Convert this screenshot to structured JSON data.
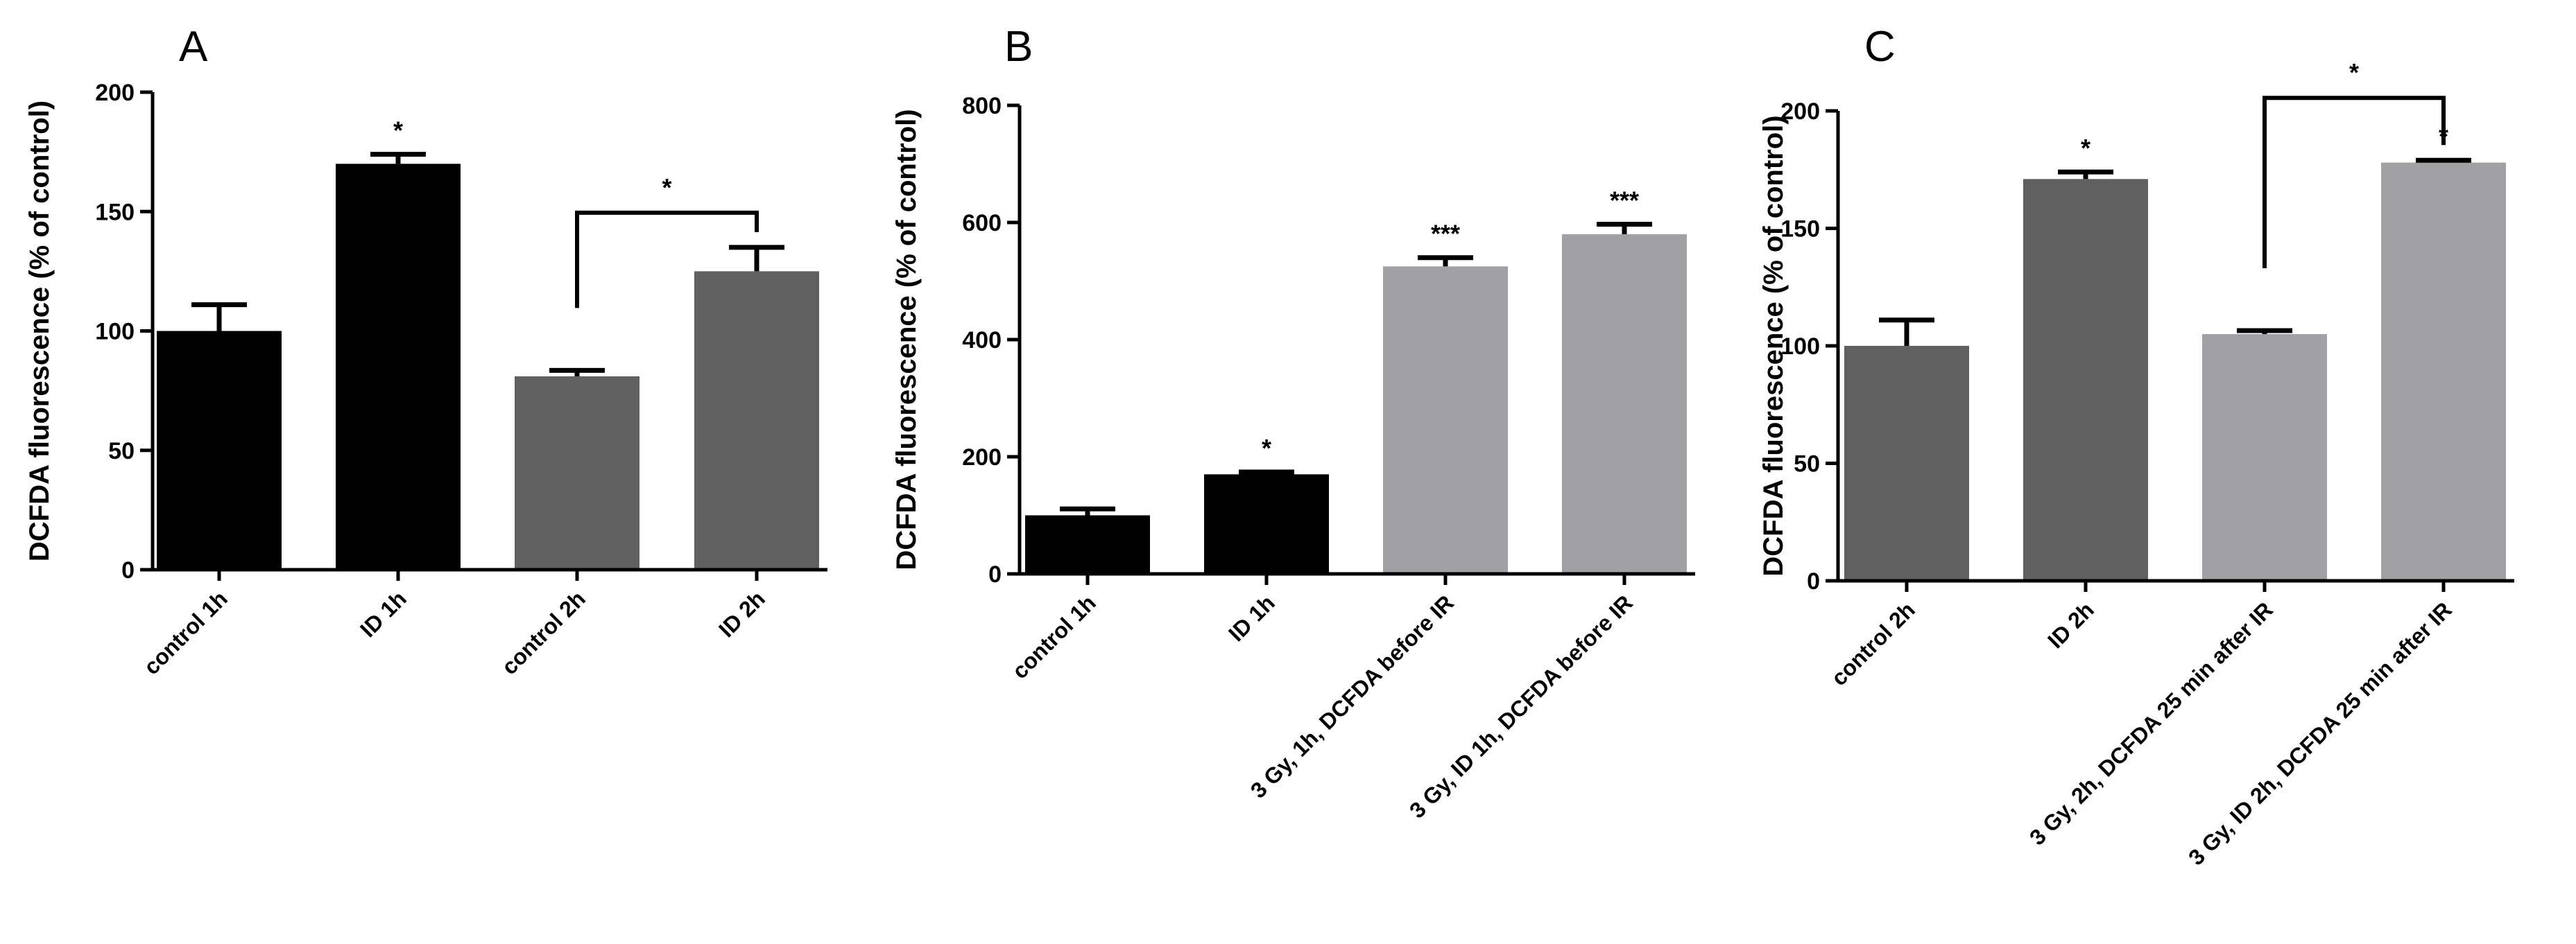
{
  "chart_data": [
    {
      "type": "bar",
      "panel_label": "A",
      "ylabel": "DCFDA fluorescence (% of control)",
      "ylim": [
        0,
        200
      ],
      "yticks": [
        0,
        50,
        100,
        150,
        200
      ],
      "categories": [
        "control 1h",
        "ID 1h",
        "control 2h",
        "ID 2h"
      ],
      "values": [
        100,
        170,
        81,
        125
      ],
      "errors": [
        11,
        4,
        2.5,
        10
      ],
      "colors": [
        "#000000",
        "#000000",
        "#606060",
        "#606060"
      ],
      "annotations": [
        {
          "category_index": 1,
          "text": "*"
        }
      ],
      "brackets": [
        {
          "from": 2,
          "to": 3,
          "text": "*"
        }
      ]
    },
    {
      "type": "bar",
      "panel_label": "B",
      "ylabel": "DCFDA fluorescence (% of control)",
      "ylim": [
        0,
        800
      ],
      "yticks": [
        0,
        200,
        400,
        600,
        800
      ],
      "categories": [
        "control 1h",
        "ID 1h",
        "3 Gy, 1h, DCFDA before IR",
        "3 Gy, ID 1h, DCFDA before IR"
      ],
      "values": [
        100,
        170,
        525,
        580
      ],
      "errors": [
        11,
        4,
        15,
        17
      ],
      "colors": [
        "#000000",
        "#000000",
        "#a0a0a5",
        "#a0a0a5"
      ],
      "annotations": [
        {
          "category_index": 1,
          "text": "*"
        },
        {
          "category_index": 2,
          "text": "***"
        },
        {
          "category_index": 3,
          "text": "***"
        }
      ],
      "brackets": []
    },
    {
      "type": "bar",
      "panel_label": "C",
      "ylabel": "DCFDA fluorescence (% of control)",
      "ylim": [
        0,
        200
      ],
      "yticks": [
        0,
        50,
        100,
        150,
        200
      ],
      "categories": [
        "control 2h",
        "ID 2h",
        "3 Gy, 2h, DCFDA 25 min after IR",
        "3 Gy, ID 2h, DCFDA 25 min after IR"
      ],
      "values": [
        100,
        171,
        105,
        178
      ],
      "errors": [
        11,
        3,
        1.5,
        1
      ],
      "colors": [
        "#606060",
        "#606060",
        "#a0a0a5",
        "#a0a0a5"
      ],
      "annotations": [
        {
          "category_index": 1,
          "text": "*"
        },
        {
          "category_index": 3,
          "text": "*"
        }
      ],
      "brackets": [
        {
          "from": 2,
          "to": 3,
          "text": "*"
        }
      ]
    }
  ]
}
